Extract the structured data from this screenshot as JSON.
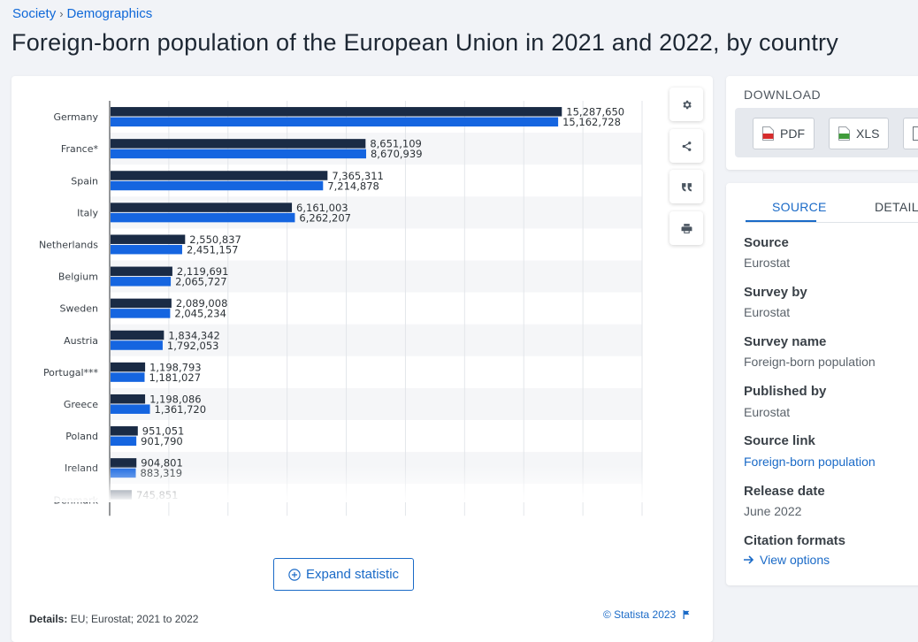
{
  "breadcrumb": {
    "items": [
      "Society",
      "Demographics"
    ],
    "separator": "›"
  },
  "page_title": "Foreign-born population of the European Union in 2021 and 2022, by country",
  "chart_data": {
    "type": "bar",
    "orientation": "horizontal",
    "categories": [
      "Germany",
      "France*",
      "Spain",
      "Italy",
      "Netherlands",
      "Belgium",
      "Sweden",
      "Austria",
      "Portugal***",
      "Greece",
      "Poland",
      "Ireland",
      "Denmark"
    ],
    "series": [
      {
        "name": "2021",
        "color": "#1a2b45",
        "values": [
          15287650,
          8651109,
          7365311,
          6161003,
          2550837,
          2119691,
          2089008,
          1834342,
          1198793,
          1198086,
          951051,
          904801,
          745851
        ]
      },
      {
        "name": "2022",
        "color": "#1565e0",
        "values": [
          15162728,
          8670939,
          7214878,
          6262207,
          2451157,
          2065727,
          2045234,
          1792053,
          1181027,
          1361720,
          901790,
          883319,
          null
        ]
      }
    ],
    "value_labels": {
      "2021": [
        "15,287,650",
        "8,651,109",
        "7,365,311",
        "6,161,003",
        "2,550,837",
        "2,119,691",
        "2,089,008",
        "1,834,342",
        "1,198,793",
        "1,198,086",
        "951,051",
        "904,801",
        "745,851"
      ],
      "2022": [
        "15,162,728",
        "8,670,939",
        "7,214,878",
        "6,262,207",
        "2,451,157",
        "2,065,727",
        "2,045,234",
        "1,792,053",
        "1,181,027",
        "1,361,720",
        "901,790",
        "883,319",
        ""
      ]
    },
    "xlim": [
      0,
      18000000
    ],
    "grid": true,
    "title": "",
    "xlabel": "",
    "ylabel": ""
  },
  "tools": [
    {
      "icon": "gear-icon",
      "name": "settings-button"
    },
    {
      "icon": "share-icon",
      "name": "share-button"
    },
    {
      "icon": "quote-icon",
      "name": "cite-button"
    },
    {
      "icon": "print-icon",
      "name": "print-button"
    }
  ],
  "expand_button": {
    "label": "Expand statistic"
  },
  "details": {
    "label": "Details:",
    "text": "EU; Eurostat; 2021 to 2022"
  },
  "copyright": "© Statista 2023",
  "download": {
    "title": "DOWNLOAD",
    "buttons": [
      {
        "label": "PDF",
        "icon": "pdf-file-icon",
        "color": "#d72c2c"
      },
      {
        "label": "XLS",
        "icon": "xls-file-icon",
        "color": "#3f9b3a"
      }
    ]
  },
  "tabs": {
    "source": "SOURCE",
    "details": "DETAILS"
  },
  "meta": {
    "source": {
      "label": "Source",
      "value": "Eurostat"
    },
    "survey_by": {
      "label": "Survey by",
      "value": "Eurostat"
    },
    "survey_name": {
      "label": "Survey name",
      "value": "Foreign-born population"
    },
    "published_by": {
      "label": "Published by",
      "value": "Eurostat"
    },
    "source_link": {
      "label": "Source link",
      "value": "Foreign-born population"
    },
    "release_date": {
      "label": "Release date",
      "value": "June 2022"
    },
    "citation": {
      "label": "Citation formats",
      "value": "View options"
    }
  }
}
